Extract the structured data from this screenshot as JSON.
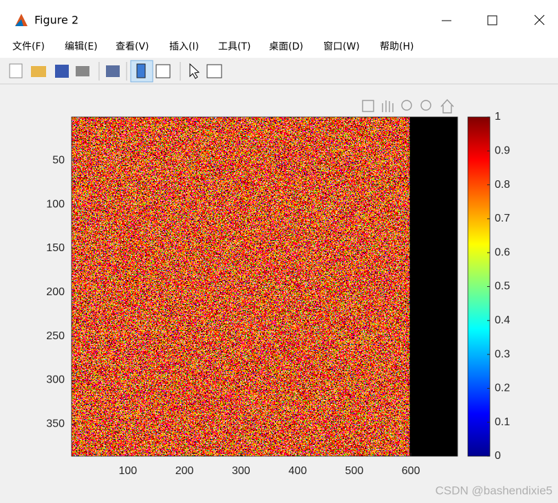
{
  "window": {
    "title": "Figure 2"
  },
  "menu": [
    "文件(F)",
    "编辑(E)",
    "查看(V)",
    "插入(I)",
    "工具(T)",
    "桌面(D)",
    "窗口(W)",
    "帮助(H)"
  ],
  "axes": {
    "xlim": [
      0.5,
      682.5
    ],
    "ylim": [
      0.5,
      386.5
    ],
    "xticks": [
      100,
      200,
      300,
      400,
      500,
      600
    ],
    "yticks": [
      50,
      100,
      150,
      200,
      250,
      300,
      350
    ]
  },
  "colorbar": {
    "lim": [
      0,
      1
    ],
    "ticks": [
      0,
      0.1,
      0.2,
      0.3,
      0.4,
      0.5,
      0.6,
      0.7,
      0.8,
      0.9,
      1
    ]
  },
  "watermark": "CSDN @bashendixie5"
}
